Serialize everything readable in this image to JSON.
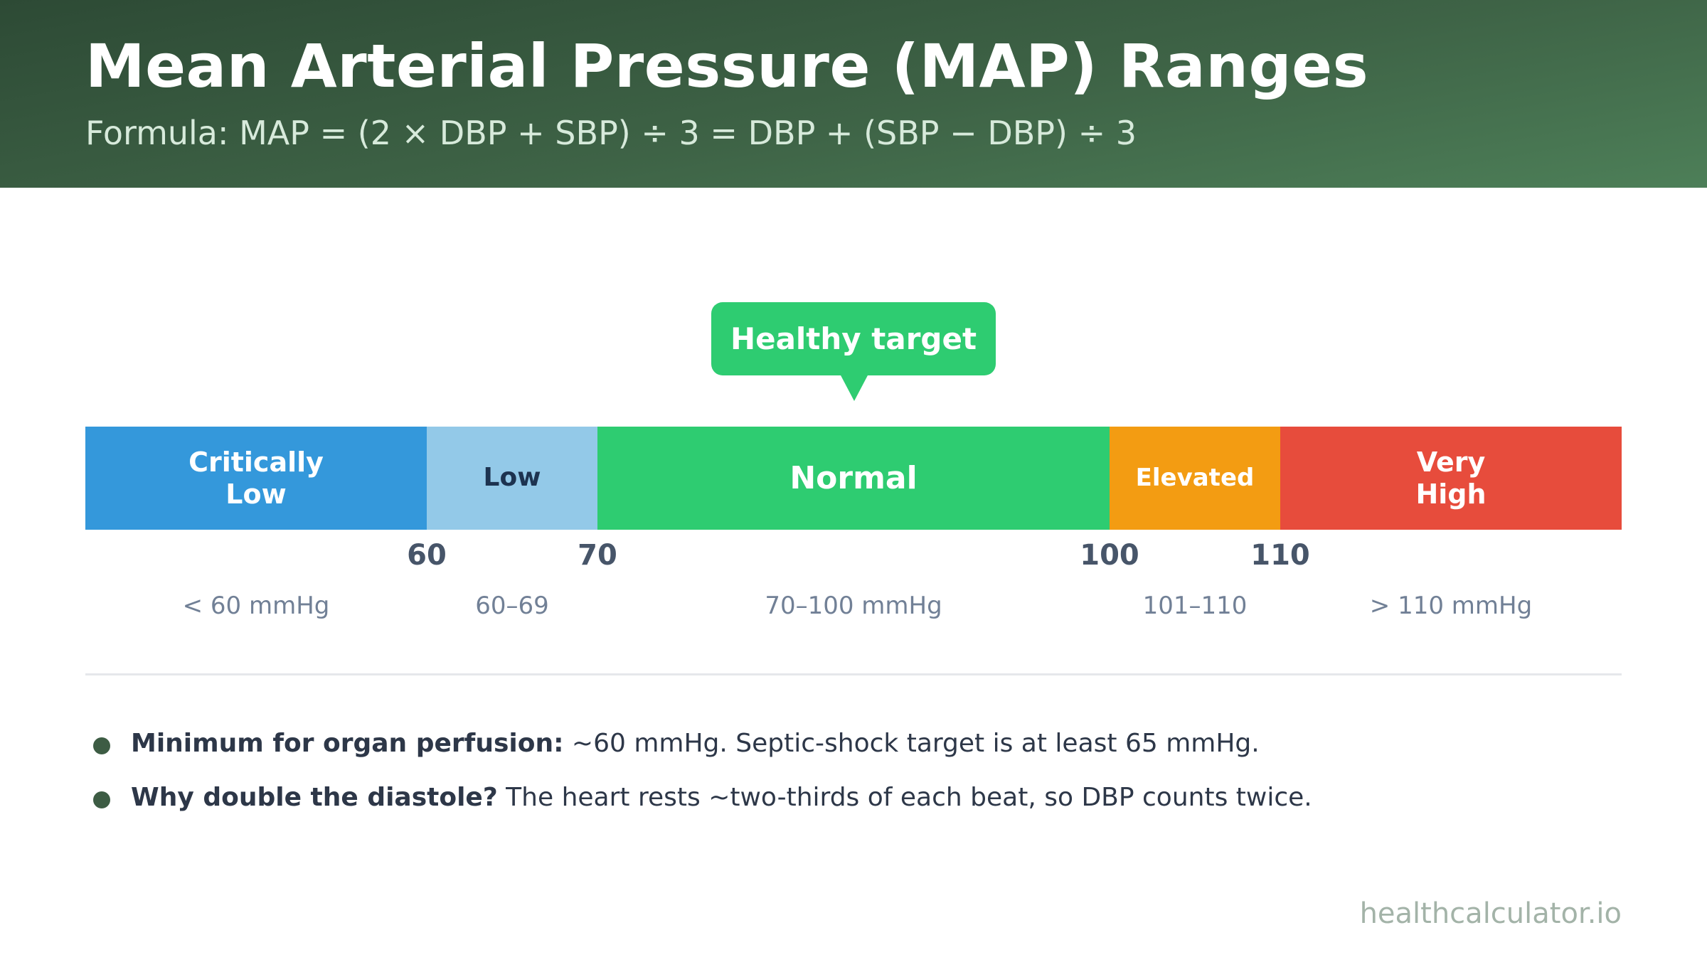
{
  "header": {
    "title": "Mean Arterial Pressure (MAP) Ranges",
    "subtitle": "Formula: MAP = (2 × DBP + SBP) ÷ 3 = DBP + (SBP − DBP) ÷ 3"
  },
  "callout": {
    "label": "Healthy target"
  },
  "scale": {
    "min": 40,
    "max": 130,
    "segments": [
      {
        "label": "Critically\nLow",
        "from": 40,
        "to": 60,
        "color": "#3498db"
      },
      {
        "label": "Low",
        "from": 60,
        "to": 70,
        "color": "#93c9e8"
      },
      {
        "label": "Normal",
        "from": 70,
        "to": 100,
        "color": "#2ecc71"
      },
      {
        "label": "Elevated",
        "from": 100,
        "to": 110,
        "color": "#f39c12"
      },
      {
        "label": "Very\nHigh",
        "from": 110,
        "to": 130,
        "color": "#e74c3c"
      }
    ],
    "ticks": [
      "60",
      "70",
      "100",
      "110"
    ],
    "ranges": [
      "< 60 mmHg",
      "60–69",
      "70–100 mmHg",
      "101–110",
      "> 110 mmHg"
    ]
  },
  "notes": [
    {
      "bold": "Minimum for organ perfusion:",
      "text": " ~60 mmHg. Septic-shock target is at least 65 mmHg."
    },
    {
      "bold": "Why double the diastole?",
      "text": " The heart rests ~two-thirds of each beat, so DBP counts twice."
    }
  ],
  "footer": {
    "source": "healthcalculator.io"
  }
}
